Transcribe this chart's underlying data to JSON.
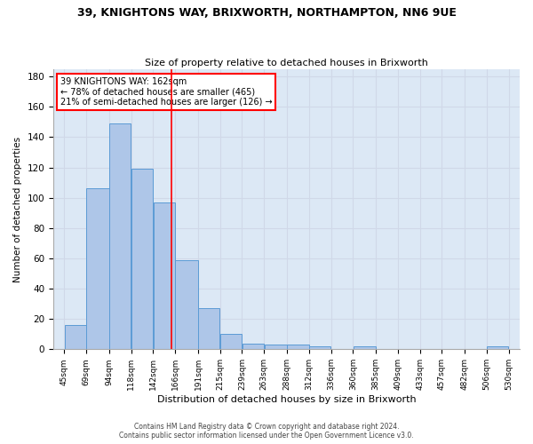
{
  "title1": "39, KNIGHTONS WAY, BRIXWORTH, NORTHAMPTON, NN6 9UE",
  "title2": "Size of property relative to detached houses in Brixworth",
  "xlabel": "Distribution of detached houses by size in Brixworth",
  "ylabel": "Number of detached properties",
  "bar_edges": [
    45,
    69,
    94,
    118,
    142,
    166,
    191,
    215,
    239,
    263,
    288,
    312,
    336,
    360,
    385,
    409,
    433,
    457,
    482,
    506,
    530
  ],
  "bar_heights": [
    16,
    106,
    149,
    119,
    97,
    59,
    27,
    10,
    4,
    3,
    3,
    2,
    0,
    2,
    0,
    0,
    0,
    0,
    0,
    2
  ],
  "bar_color": "#aec6e8",
  "bar_edge_color": "#5b9bd5",
  "property_line_x": 162,
  "ylim": [
    0,
    185
  ],
  "yticks": [
    0,
    20,
    40,
    60,
    80,
    100,
    120,
    140,
    160,
    180
  ],
  "annotation_line1": "39 KNIGHTONS WAY: 162sqm",
  "annotation_line2": "← 78% of detached houses are smaller (465)",
  "annotation_line3": "21% of semi-detached houses are larger (126) →",
  "footer1": "Contains HM Land Registry data © Crown copyright and database right 2024.",
  "footer2": "Contains public sector information licensed under the Open Government Licence v3.0.",
  "grid_color": "#d0d8e8",
  "background_color": "#dce8f5"
}
